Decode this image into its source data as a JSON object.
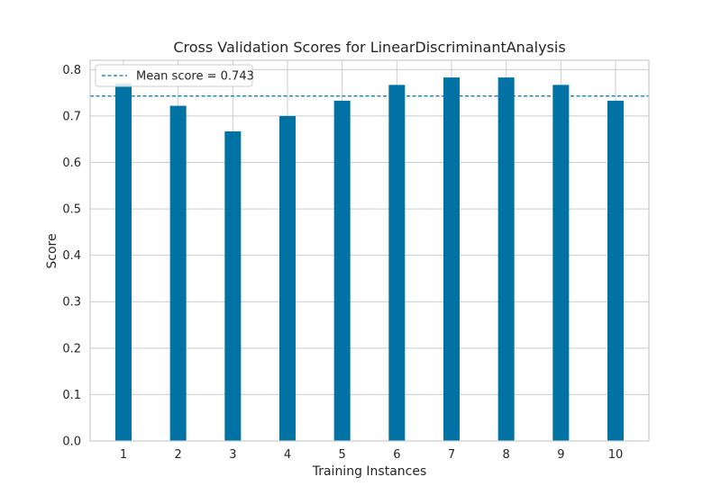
{
  "chart_data": {
    "type": "bar",
    "title": "Cross Validation Scores for LinearDiscriminantAnalysis",
    "xlabel": "Training Instances",
    "ylabel": "Score",
    "categories": [
      "1",
      "2",
      "3",
      "4",
      "5",
      "6",
      "7",
      "8",
      "9",
      "10"
    ],
    "values": [
      0.77,
      0.722,
      0.667,
      0.7,
      0.733,
      0.767,
      0.783,
      0.783,
      0.767,
      0.733
    ],
    "ylim": [
      0,
      0.82
    ],
    "yticks": [
      "0.0",
      "0.1",
      "0.2",
      "0.3",
      "0.4",
      "0.5",
      "0.6",
      "0.7",
      "0.8"
    ],
    "grid": true,
    "legend_position": "top-left",
    "mean_line": {
      "value": 0.743,
      "label": "Mean score = 0.743"
    },
    "colors": {
      "bar": "#0072a3",
      "mean_line": "#0072a3",
      "grid": "#cccccc",
      "axes_border": "#cccccc",
      "text": "#262626"
    }
  }
}
